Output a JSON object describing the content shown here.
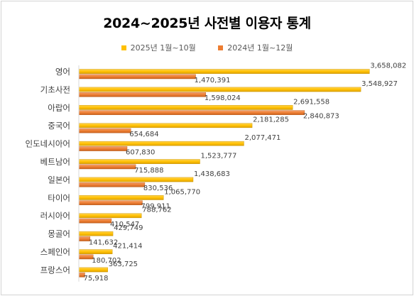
{
  "chart_data": {
    "type": "bar",
    "orientation": "horizontal",
    "title": "2024~2025년 사전별 이용자 통계",
    "legend_position": "top",
    "grid": false,
    "xlim": [
      0,
      3700000
    ],
    "categories": [
      "영어",
      "기초사전",
      "아랍어",
      "중국어",
      "인도네시아어",
      "베트남어",
      "일본어",
      "타이어",
      "러시아어",
      "몽골어",
      "스페인어",
      "프랑스어"
    ],
    "series": [
      {
        "name": "2025년 1월~10월",
        "color": "#FFC000",
        "values": [
          3658082,
          3548927,
          2691558,
          2181285,
          2077471,
          1523777,
          1438683,
          1065770,
          788762,
          429749,
          421414,
          363725
        ],
        "labels": [
          "3,658,082",
          "3,548,927",
          "2,691,558",
          "2,181,285",
          "2,077,471",
          "1,523,777",
          "1,438,683",
          "1,065,770",
          "788,762",
          "429,749",
          "421,414",
          "363,725"
        ]
      },
      {
        "name": "2024년 1월~12월",
        "color": "#ED7D31",
        "values": [
          1470391,
          1598024,
          2840873,
          654684,
          607830,
          715888,
          830536,
          799911,
          410547,
          141632,
          180702,
          75918
        ],
        "labels": [
          "1,470,391",
          "1,598,024",
          "2,840,873",
          "654,684",
          "607,830",
          "715,888",
          "830,536",
          "799,911",
          "410,547",
          "141,632",
          "180,702",
          "75,918"
        ]
      }
    ]
  }
}
